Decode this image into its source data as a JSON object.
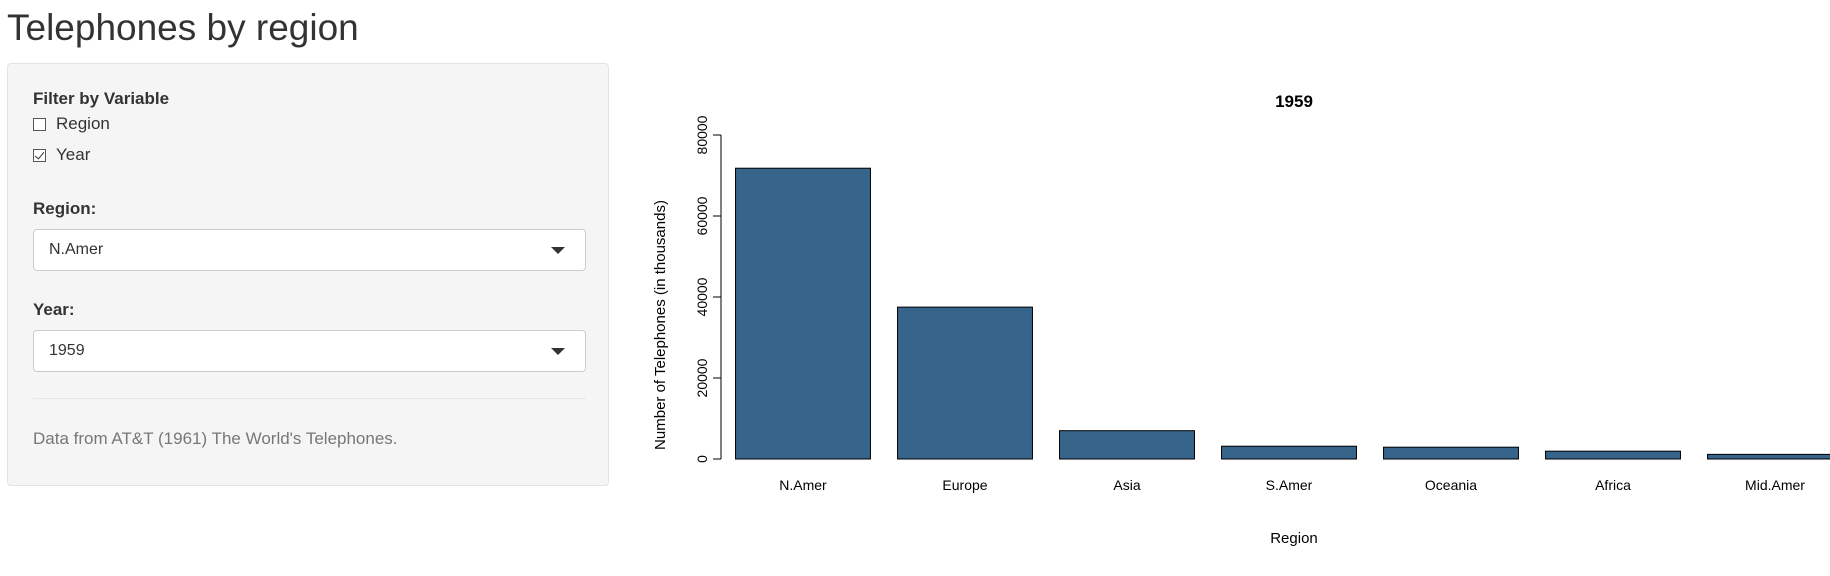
{
  "page": {
    "title": "Telephones by region"
  },
  "sidebar": {
    "filter_label": "Filter by Variable",
    "checkboxes": [
      {
        "label": "Region",
        "checked": false
      },
      {
        "label": "Year",
        "checked": true
      }
    ],
    "region_label": "Region:",
    "region_value": "N.Amer",
    "year_label": "Year:",
    "year_value": "1959",
    "footnote": "Data from AT&T (1961) The World's Telephones."
  },
  "chart_data": {
    "type": "bar",
    "title": "1959",
    "xlabel": "Region",
    "ylabel": "Number of Telephones (in thousands)",
    "categories": [
      "N.Amer",
      "Europe",
      "Asia",
      "S.Amer",
      "Oceania",
      "Africa",
      "Mid.Amer"
    ],
    "values": [
      71799,
      37503,
      6993,
      3156,
      2915,
      1932,
      1145
    ],
    "ylim": [
      0,
      80000
    ],
    "yticks": [
      "0",
      "20000",
      "40000",
      "60000",
      "80000"
    ],
    "bar_color": "#36648b",
    "grid": false
  }
}
